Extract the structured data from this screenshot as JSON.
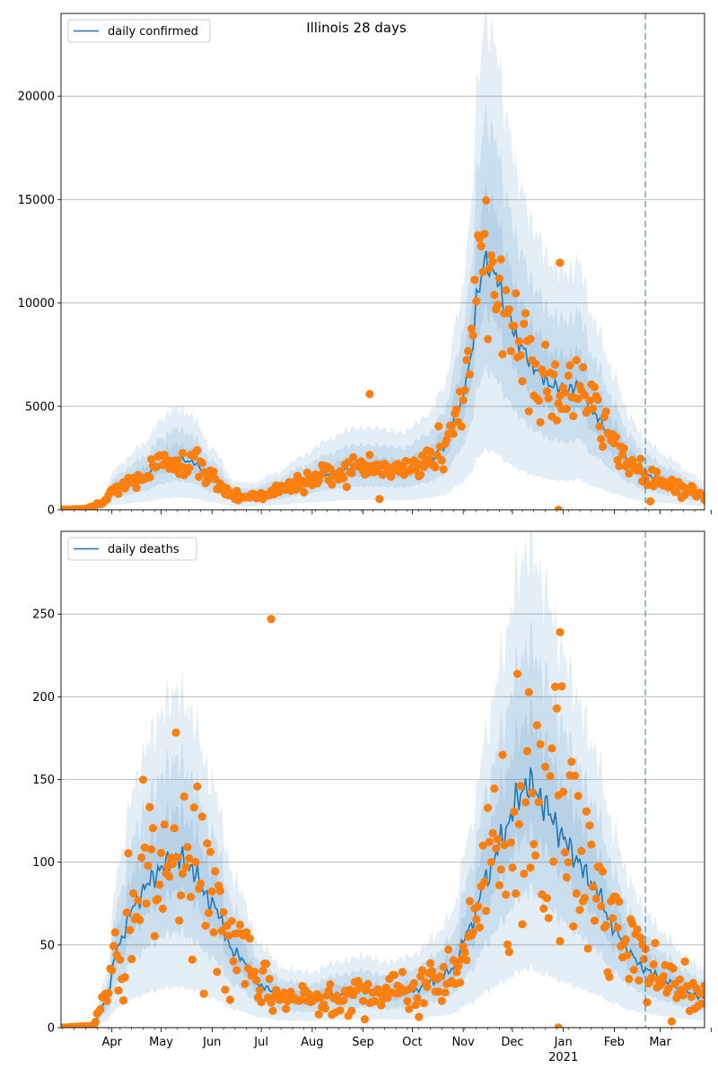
{
  "chart_data": [
    {
      "type": "line",
      "title": "Illinois 28 days",
      "legend": {
        "placement": "top-left",
        "entries": [
          "daily confirmed"
        ]
      },
      "xlabel": "",
      "ylabel": "",
      "ylim": [
        0,
        24000
      ],
      "yticks": [
        0,
        5000,
        10000,
        15000,
        20000
      ],
      "grid": "horizontal",
      "x_range": [
        "2020-03-01",
        "2021-03-28"
      ],
      "forecast_start": "2021-02-20",
      "colors": {
        "line": "#1f77b4",
        "points": "#ff7f0e",
        "band": "#1f77b4",
        "vline": "#1f77b4"
      },
      "series": [
        {
          "name": "daily confirmed",
          "kind": "line_with_bands",
          "anchors": [
            [
              "2020-03-01",
              0
            ],
            [
              "2020-03-15",
              30
            ],
            [
              "2020-03-25",
              300
            ],
            [
              "2020-04-05",
              1100
            ],
            [
              "2020-04-20",
              1600
            ],
            [
              "2020-05-01",
              2200
            ],
            [
              "2020-05-10",
              2500
            ],
            [
              "2020-05-20",
              2300
            ],
            [
              "2020-06-01",
              1500
            ],
            [
              "2020-06-15",
              700
            ],
            [
              "2020-06-25",
              650
            ],
            [
              "2020-07-10",
              900
            ],
            [
              "2020-07-25",
              1300
            ],
            [
              "2020-08-10",
              1700
            ],
            [
              "2020-08-25",
              2000
            ],
            [
              "2020-09-10",
              2000
            ],
            [
              "2020-09-25",
              1900
            ],
            [
              "2020-10-10",
              2300
            ],
            [
              "2020-10-20",
              3000
            ],
            [
              "2020-10-30",
              5000
            ],
            [
              "2020-11-05",
              7000
            ],
            [
              "2020-11-10",
              10500
            ],
            [
              "2020-11-14",
              12000
            ],
            [
              "2020-11-20",
              11500
            ],
            [
              "2020-11-28",
              9500
            ],
            [
              "2020-12-05",
              8000
            ],
            [
              "2020-12-15",
              6800
            ],
            [
              "2020-12-25",
              6000
            ],
            [
              "2021-01-05",
              5800
            ],
            [
              "2021-01-10",
              6100
            ],
            [
              "2021-01-20",
              4600
            ],
            [
              "2021-02-01",
              3300
            ],
            [
              "2021-02-10",
              2300
            ],
            [
              "2021-02-20",
              1700
            ],
            [
              "2021-03-05",
              1300
            ],
            [
              "2021-03-20",
              900
            ],
            [
              "2021-03-28",
              650
            ]
          ]
        },
        {
          "name": "",
          "kind": "observed_points"
        }
      ]
    },
    {
      "type": "line",
      "title": "",
      "legend": {
        "placement": "top-left",
        "entries": [
          "daily deaths"
        ]
      },
      "xlabel": "",
      "ylabel": "",
      "ylim": [
        0,
        300
      ],
      "yticks": [
        0,
        50,
        100,
        150,
        200,
        250
      ],
      "grid": "horizontal",
      "x_range": [
        "2020-03-01",
        "2021-03-28"
      ],
      "xtick_labels": [
        "Apr",
        "May",
        "Jun",
        "Jul",
        "Aug",
        "Sep",
        "Oct",
        "Nov",
        "Dec",
        "Jan",
        "Feb",
        "Mar"
      ],
      "x_year_label": "2021",
      "forecast_start": "2021-02-20",
      "colors": {
        "line": "#1f77b4",
        "points": "#ff7f0e",
        "band": "#1f77b4",
        "vline": "#1f77b4"
      },
      "series": [
        {
          "name": "daily deaths",
          "kind": "line_with_bands",
          "anchors": [
            [
              "2020-03-01",
              0
            ],
            [
              "2020-03-20",
              1
            ],
            [
              "2020-03-28",
              15
            ],
            [
              "2020-04-05",
              50
            ],
            [
              "2020-04-15",
              75
            ],
            [
              "2020-04-25",
              90
            ],
            [
              "2020-05-05",
              100
            ],
            [
              "2020-05-12",
              103
            ],
            [
              "2020-05-20",
              95
            ],
            [
              "2020-06-01",
              75
            ],
            [
              "2020-06-15",
              45
            ],
            [
              "2020-07-01",
              25
            ],
            [
              "2020-07-15",
              18
            ],
            [
              "2020-08-01",
              17
            ],
            [
              "2020-08-15",
              20
            ],
            [
              "2020-09-01",
              22
            ],
            [
              "2020-09-15",
              20
            ],
            [
              "2020-10-01",
              22
            ],
            [
              "2020-10-15",
              28
            ],
            [
              "2020-10-25",
              35
            ],
            [
              "2020-11-05",
              60
            ],
            [
              "2020-11-15",
              90
            ],
            [
              "2020-11-25",
              115
            ],
            [
              "2020-12-05",
              140
            ],
            [
              "2020-12-12",
              148
            ],
            [
              "2020-12-20",
              135
            ],
            [
              "2021-01-01",
              115
            ],
            [
              "2021-01-10",
              100
            ],
            [
              "2021-01-20",
              85
            ],
            [
              "2021-02-01",
              60
            ],
            [
              "2021-02-10",
              45
            ],
            [
              "2021-02-20",
              35
            ],
            [
              "2021-03-05",
              28
            ],
            [
              "2021-03-15",
              22
            ],
            [
              "2021-03-28",
              18
            ]
          ]
        },
        {
          "name": "",
          "kind": "observed_points"
        }
      ]
    }
  ],
  "outliers": {
    "cases": [
      [
        "2020-09-05",
        5600
      ],
      [
        "2020-12-30",
        11950
      ],
      [
        "2020-12-29",
        0
      ]
    ],
    "deaths": [
      [
        "2020-07-07",
        247
      ],
      [
        "2020-12-30",
        239
      ],
      [
        "2020-12-29",
        0
      ]
    ]
  }
}
